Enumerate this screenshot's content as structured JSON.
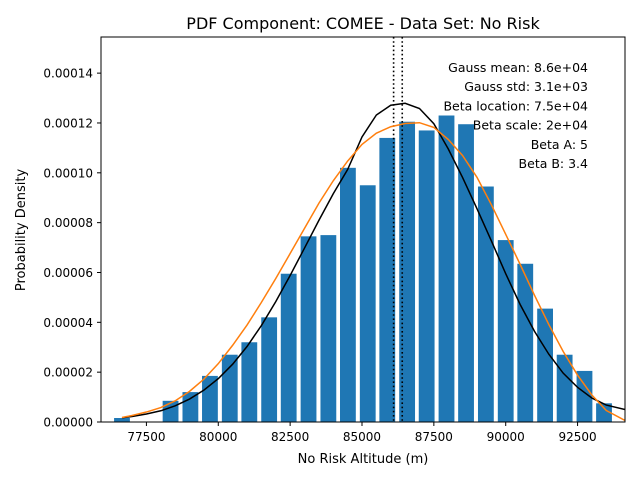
{
  "chart_data": {
    "type": "bar",
    "title": "PDF Component: COMEE - Data Set: No Risk",
    "xlabel": "No Risk Altitude (m)",
    "ylabel": "Probability Density",
    "xlim": [
      75920,
      94150
    ],
    "ylim": [
      0,
      0.0001545
    ],
    "grid": false,
    "xticks": [
      77500,
      80000,
      82500,
      85000,
      87500,
      90000,
      92500
    ],
    "yticks": [
      0.0,
      2e-05,
      4e-05,
      6e-05,
      8e-05,
      0.0001,
      0.00012,
      0.00014
    ],
    "xtick_labels": [
      "77500",
      "80000",
      "82500",
      "85000",
      "87500",
      "90000",
      "92500"
    ],
    "ytick_labels": [
      "0.00000",
      "0.00002",
      "0.00004",
      "0.00006",
      "0.00008",
      "0.00010",
      "0.00012",
      "0.00014"
    ],
    "bar_width": 550,
    "bar_color": "#1f77b4",
    "bars": {
      "x": [
        76650,
        78340,
        79030,
        79710,
        80400,
        81080,
        81770,
        82450,
        83140,
        83830,
        84510,
        85200,
        85880,
        86570,
        87250,
        87940,
        88620,
        89310,
        90000,
        90680,
        91370,
        92050,
        92740,
        93420
      ],
      "values": [
        1.6e-06,
        8.5e-06,
        1.2e-05,
        1.85e-05,
        2.7e-05,
        3.2e-05,
        4.2e-05,
        5.95e-05,
        7.45e-05,
        7.5e-05,
        0.000102,
        9.5e-05,
        0.000114,
        0.0001205,
        0.000117,
        0.000123,
        0.0001195,
        9.45e-05,
        7.3e-05,
        6.35e-05,
        4.55e-05,
        2.7e-05,
        2.05e-05,
        7.5e-06
      ]
    },
    "series": [
      {
        "kind": "gauss",
        "color": "#000000",
        "x": [
          76650,
          77000,
          77500,
          78000,
          78500,
          79000,
          79500,
          80000,
          80500,
          81000,
          81500,
          82000,
          82500,
          83000,
          83500,
          84000,
          84500,
          85000,
          85500,
          86000,
          86500,
          87000,
          87500,
          88000,
          88500,
          89000,
          89500,
          90000,
          90500,
          91000,
          91500,
          92000,
          92500,
          93000,
          93500,
          94150
        ],
        "y": [
          1.7e-06,
          2.2e-06,
          3.2e-06,
          4.5e-06,
          6.5e-06,
          9.2e-06,
          1.28e-05,
          1.74e-05,
          2.32e-05,
          3.03e-05,
          3.87e-05,
          4.83e-05,
          5.88e-05,
          6.98e-05,
          8.09e-05,
          9.16e-05,
          0.0001013,
          0.0001144,
          0.0001232,
          0.0001271,
          0.0001279,
          0.0001258,
          0.0001197,
          0.0001096,
          9.81e-05,
          8.56e-05,
          7.27e-05,
          5.95e-05,
          4.72e-05,
          3.64e-05,
          2.72e-05,
          1.96e-05,
          1.39e-05,
          9.6e-06,
          6.8e-06,
          5e-06
        ]
      },
      {
        "kind": "beta",
        "color": "#ff7f0e",
        "x": [
          76650,
          77000,
          77500,
          78000,
          78500,
          79000,
          79500,
          80000,
          80500,
          81000,
          81500,
          82000,
          82500,
          83000,
          83500,
          84000,
          84500,
          85000,
          85500,
          86000,
          86500,
          87000,
          87500,
          88000,
          88500,
          89000,
          89500,
          90000,
          90500,
          91000,
          91500,
          92000,
          92500,
          93000,
          93500,
          94150
        ],
        "y": [
          1.8e-06,
          2.6e-06,
          4e-06,
          5.8e-06,
          8.5e-06,
          1.23e-05,
          1.72e-05,
          2.34e-05,
          3.08e-05,
          3.89e-05,
          4.8e-05,
          5.76e-05,
          6.76e-05,
          7.77e-05,
          8.78e-05,
          9.68e-05,
          0.0001047,
          0.0001114,
          0.0001159,
          0.0001185,
          0.0001198,
          0.0001201,
          0.0001182,
          0.0001134,
          0.0001069,
          9.82e-05,
          8.72e-05,
          7.53e-05,
          6.33e-05,
          5.09e-05,
          3.91e-05,
          2.83e-05,
          1.88e-05,
          1.08e-05,
          4.6e-06,
          6e-07
        ]
      }
    ],
    "vlines": [
      {
        "x": 86100,
        "color": "#000000",
        "style": "dotted"
      },
      {
        "x": 86400,
        "color": "#000000",
        "style": "dotted"
      }
    ],
    "annotations": [
      "Gauss mean: 8.6e+04",
      "Gauss std: 3.1e+03",
      "Beta location: 7.5e+04",
      "Beta scale: 2e+04",
      "Beta A: 5",
      "Beta B: 3.4"
    ]
  }
}
